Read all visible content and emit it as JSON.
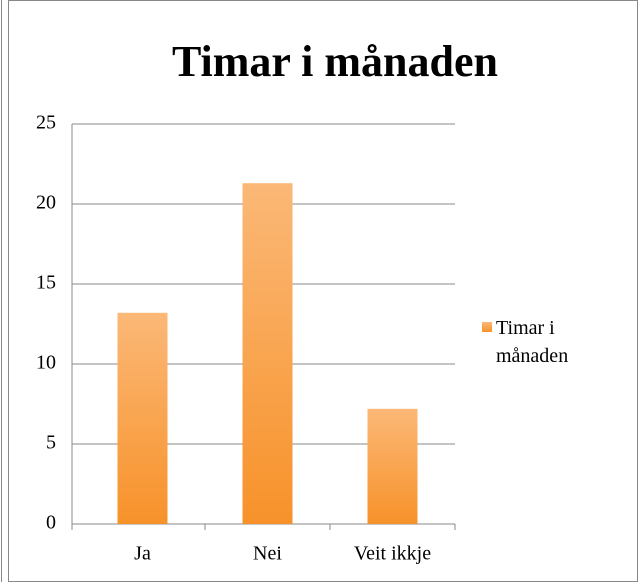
{
  "chart_data": {
    "type": "bar",
    "title": "Timar i månaden",
    "categories": [
      "Ja",
      "Nei",
      "Veit ikkje"
    ],
    "series": [
      {
        "name": "Timar i månaden",
        "color": "#f7922a",
        "values": [
          13.2,
          21.3,
          7.2
        ]
      }
    ],
    "ylim": [
      0,
      25
    ],
    "yticks": [
      0,
      5,
      10,
      15,
      20,
      25
    ],
    "grid": true,
    "legend": "right"
  }
}
